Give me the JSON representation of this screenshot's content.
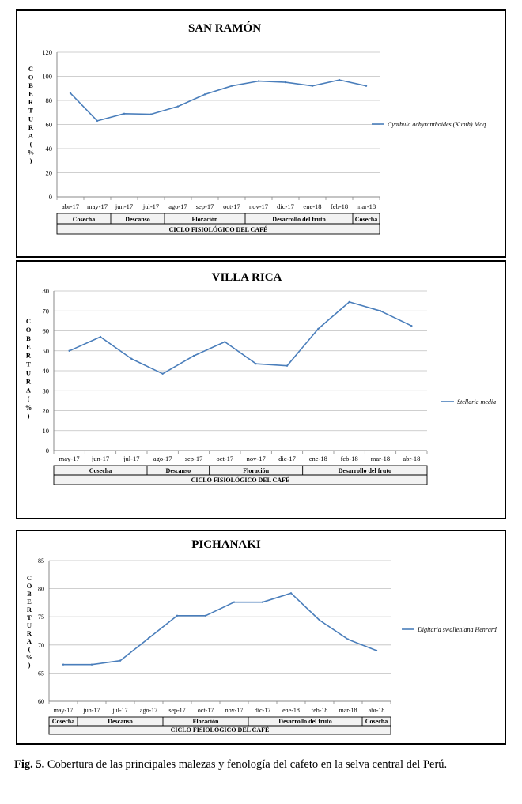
{
  "caption": {
    "label": "Fig. 5.",
    "text": "Cobertura de las principales malezas y fenología del cafeto en la selva central del Perú."
  },
  "colors": {
    "line": "#4a7ebb",
    "axis": "#888888",
    "frame": "#000000"
  },
  "chart_data": [
    {
      "type": "line",
      "title": "SAN RAMÓN",
      "ylabel": "COBERTURA (%)",
      "ylim": [
        0,
        120
      ],
      "yticks": [
        0,
        20,
        40,
        60,
        80,
        100,
        120
      ],
      "categories": [
        "abr-17",
        "may-17",
        "jun-17",
        "jul-17",
        "ago-17",
        "sep-17",
        "oct-17",
        "nov-17",
        "dic-17",
        "ene-18",
        "feb-18",
        "mar-18"
      ],
      "series": [
        {
          "name": "Cyathula achyranthoides (Kunth) Moq.",
          "values": [
            86,
            63,
            69,
            68.5,
            75,
            85,
            92,
            96,
            95,
            92,
            97,
            92
          ]
        }
      ],
      "phases": [
        {
          "label": "Cosecha",
          "span": 2
        },
        {
          "label": "Descanso",
          "span": 2
        },
        {
          "label": "Floración",
          "span": 3
        },
        {
          "label": "Desarrollo del fruto",
          "span": 4
        },
        {
          "label": "Cosecha",
          "span": 1
        }
      ],
      "cycle_label": "CICLO FISIOLÓGICO DEL CAFÉ",
      "legend": "right"
    },
    {
      "type": "line",
      "title": "VILLA RICA",
      "ylabel": "COBERTURA (%)",
      "ylim": [
        0,
        80
      ],
      "yticks": [
        0,
        10,
        20,
        30,
        40,
        50,
        60,
        70,
        80
      ],
      "categories": [
        "may-17",
        "jun-17",
        "jul-17",
        "ago-17",
        "sep-17",
        "oct-17",
        "nov-17",
        "dic-17",
        "ene-18",
        "feb-18",
        "mar-18",
        "abr-18"
      ],
      "series": [
        {
          "name": "Stellaria media",
          "values": [
            50,
            57,
            46,
            38.5,
            47.5,
            54.5,
            43.5,
            42.5,
            61,
            74.5,
            70,
            62.5
          ]
        }
      ],
      "phases": [
        {
          "label": "Cosecha",
          "span": 3
        },
        {
          "label": "Descanso",
          "span": 2
        },
        {
          "label": "Floración",
          "span": 3
        },
        {
          "label": "Desarrollo del fruto",
          "span": 4
        }
      ],
      "cycle_label": "CICLO FISIOLÓGICO DEL CAFÉ",
      "legend": "right"
    },
    {
      "type": "line",
      "title": "PICHANAKI",
      "ylabel": "COBERTURA (%)",
      "ylim": [
        60,
        85
      ],
      "yticks": [
        60,
        65,
        70,
        75,
        80,
        85
      ],
      "categories": [
        "may-17",
        "jun-17",
        "jul-17",
        "ago-17",
        "sep-17",
        "oct-17",
        "nov-17",
        "dic-17",
        "ene-18",
        "feb-18",
        "mar-18",
        "abr-18"
      ],
      "series": [
        {
          "name": "Digitaria swalleniana Henrard",
          "values": [
            66.5,
            66.5,
            67.2,
            71.2,
            75.2,
            75.2,
            77.6,
            77.6,
            79.2,
            74.4,
            71.0,
            69.0
          ]
        }
      ],
      "phases": [
        {
          "label": "Cosecha",
          "span": 1
        },
        {
          "label": "Descanso",
          "span": 3
        },
        {
          "label": "Floración",
          "span": 3
        },
        {
          "label": "Desarrollo del fruto",
          "span": 4
        },
        {
          "label": "Cosecha",
          "span": 1
        }
      ],
      "cycle_label": "CICLO FISIOLÓGICO DEL CAFÉ",
      "legend": "right"
    }
  ]
}
